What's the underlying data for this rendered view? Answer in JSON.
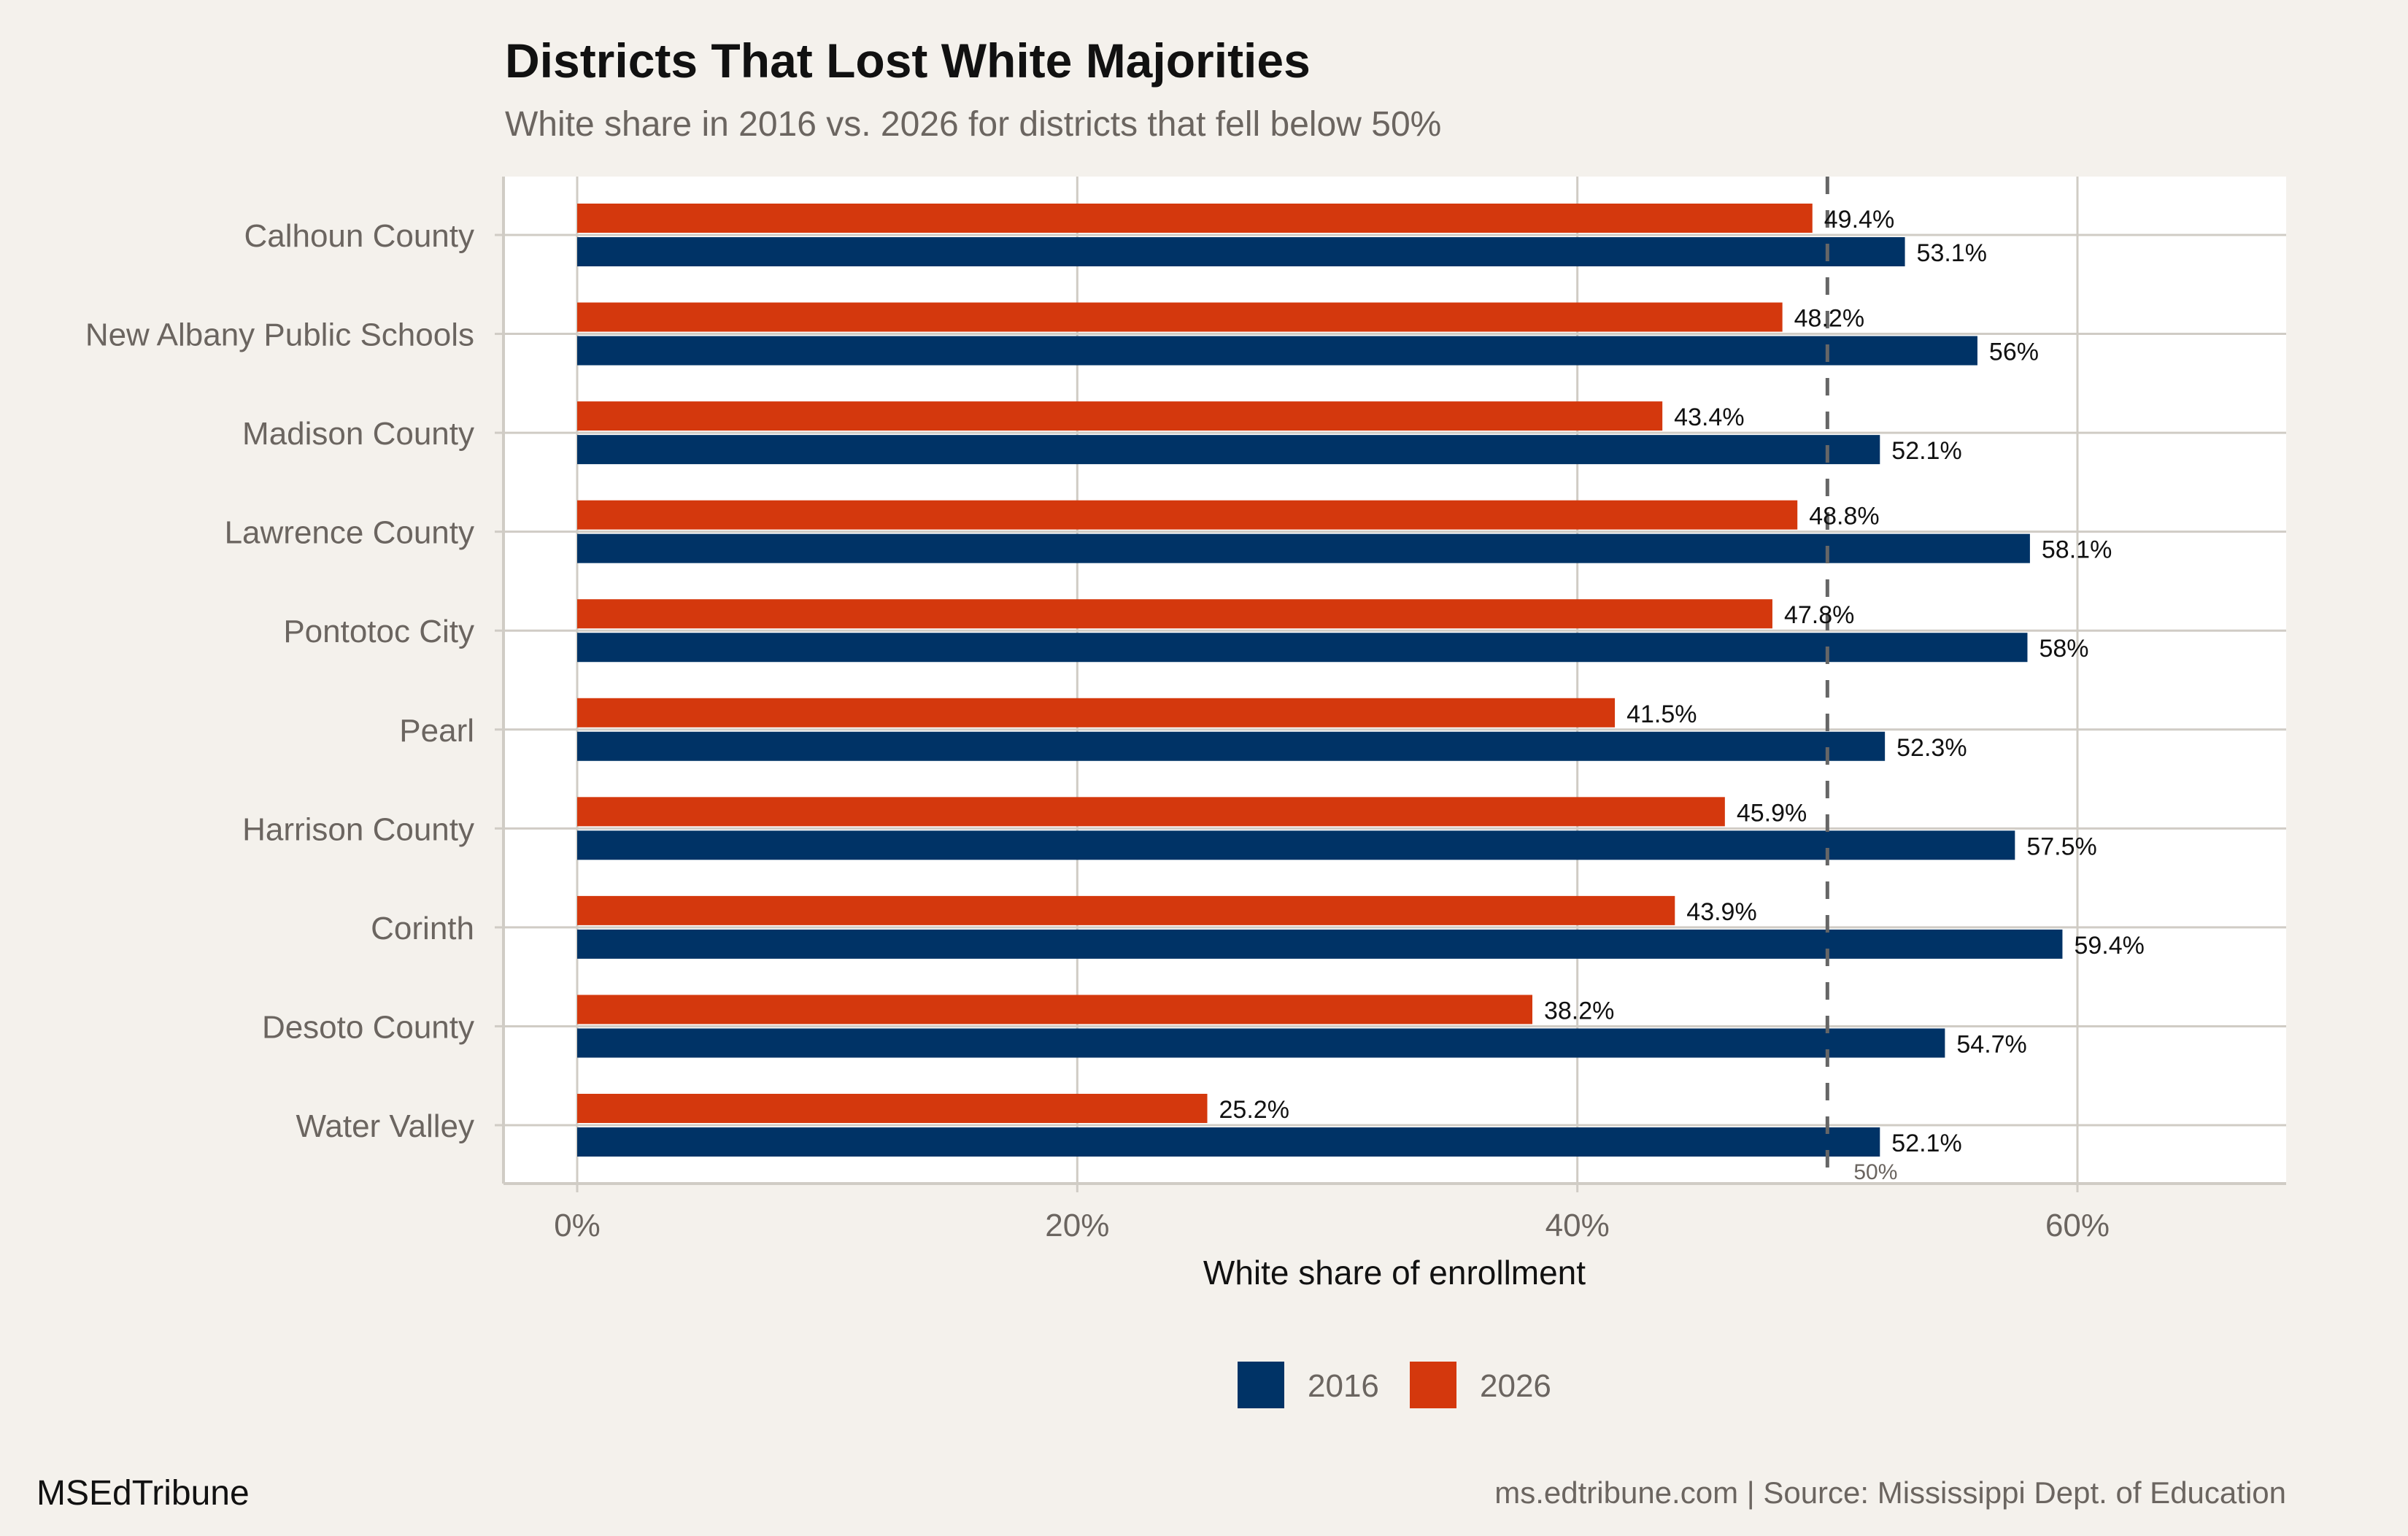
{
  "chart_data": {
    "type": "bar",
    "orientation": "horizontal",
    "title": "Districts That Lost White Majorities",
    "subtitle": "White share in 2016 vs. 2026 for districts that fell below 50%",
    "xlabel": "White share of enrollment",
    "ylabel": "",
    "xlim": [
      0,
      68
    ],
    "xticks": [
      0,
      20,
      40,
      60
    ],
    "xtick_labels": [
      "0%",
      "20%",
      "40%",
      "60%"
    ],
    "grid": true,
    "legend_position": "bottom",
    "categories": [
      "Calhoun County",
      "New Albany Public Schools",
      "Madison County",
      "Lawrence County",
      "Pontotoc City",
      "Pearl",
      "Harrison County",
      "Corinth",
      "Desoto County",
      "Water Valley"
    ],
    "series": [
      {
        "name": "2016",
        "color": "#003366",
        "values": [
          53.1,
          56,
          52.1,
          58.1,
          58,
          52.3,
          57.5,
          59.4,
          54.7,
          52.1
        ],
        "labels": [
          "53.1%",
          "56%",
          "52.1%",
          "58.1%",
          "58%",
          "52.3%",
          "57.5%",
          "59.4%",
          "54.7%",
          "52.1%"
        ]
      },
      {
        "name": "2026",
        "color": "#d4380d",
        "values": [
          49.4,
          48.2,
          43.4,
          48.8,
          47.8,
          41.5,
          45.9,
          43.9,
          38.2,
          25.2
        ],
        "labels": [
          "49.4%",
          "48.2%",
          "43.4%",
          "48.8%",
          "47.8%",
          "41.5%",
          "45.9%",
          "43.9%",
          "38.2%",
          "25.2%"
        ]
      }
    ],
    "reference_line": {
      "value": 50,
      "label": "50%",
      "style": "dashed",
      "color": "#666666"
    }
  },
  "footer": {
    "brand": "MSEdTribune",
    "source": "ms.edtribune.com | Source: Mississippi Dept. of Education"
  }
}
